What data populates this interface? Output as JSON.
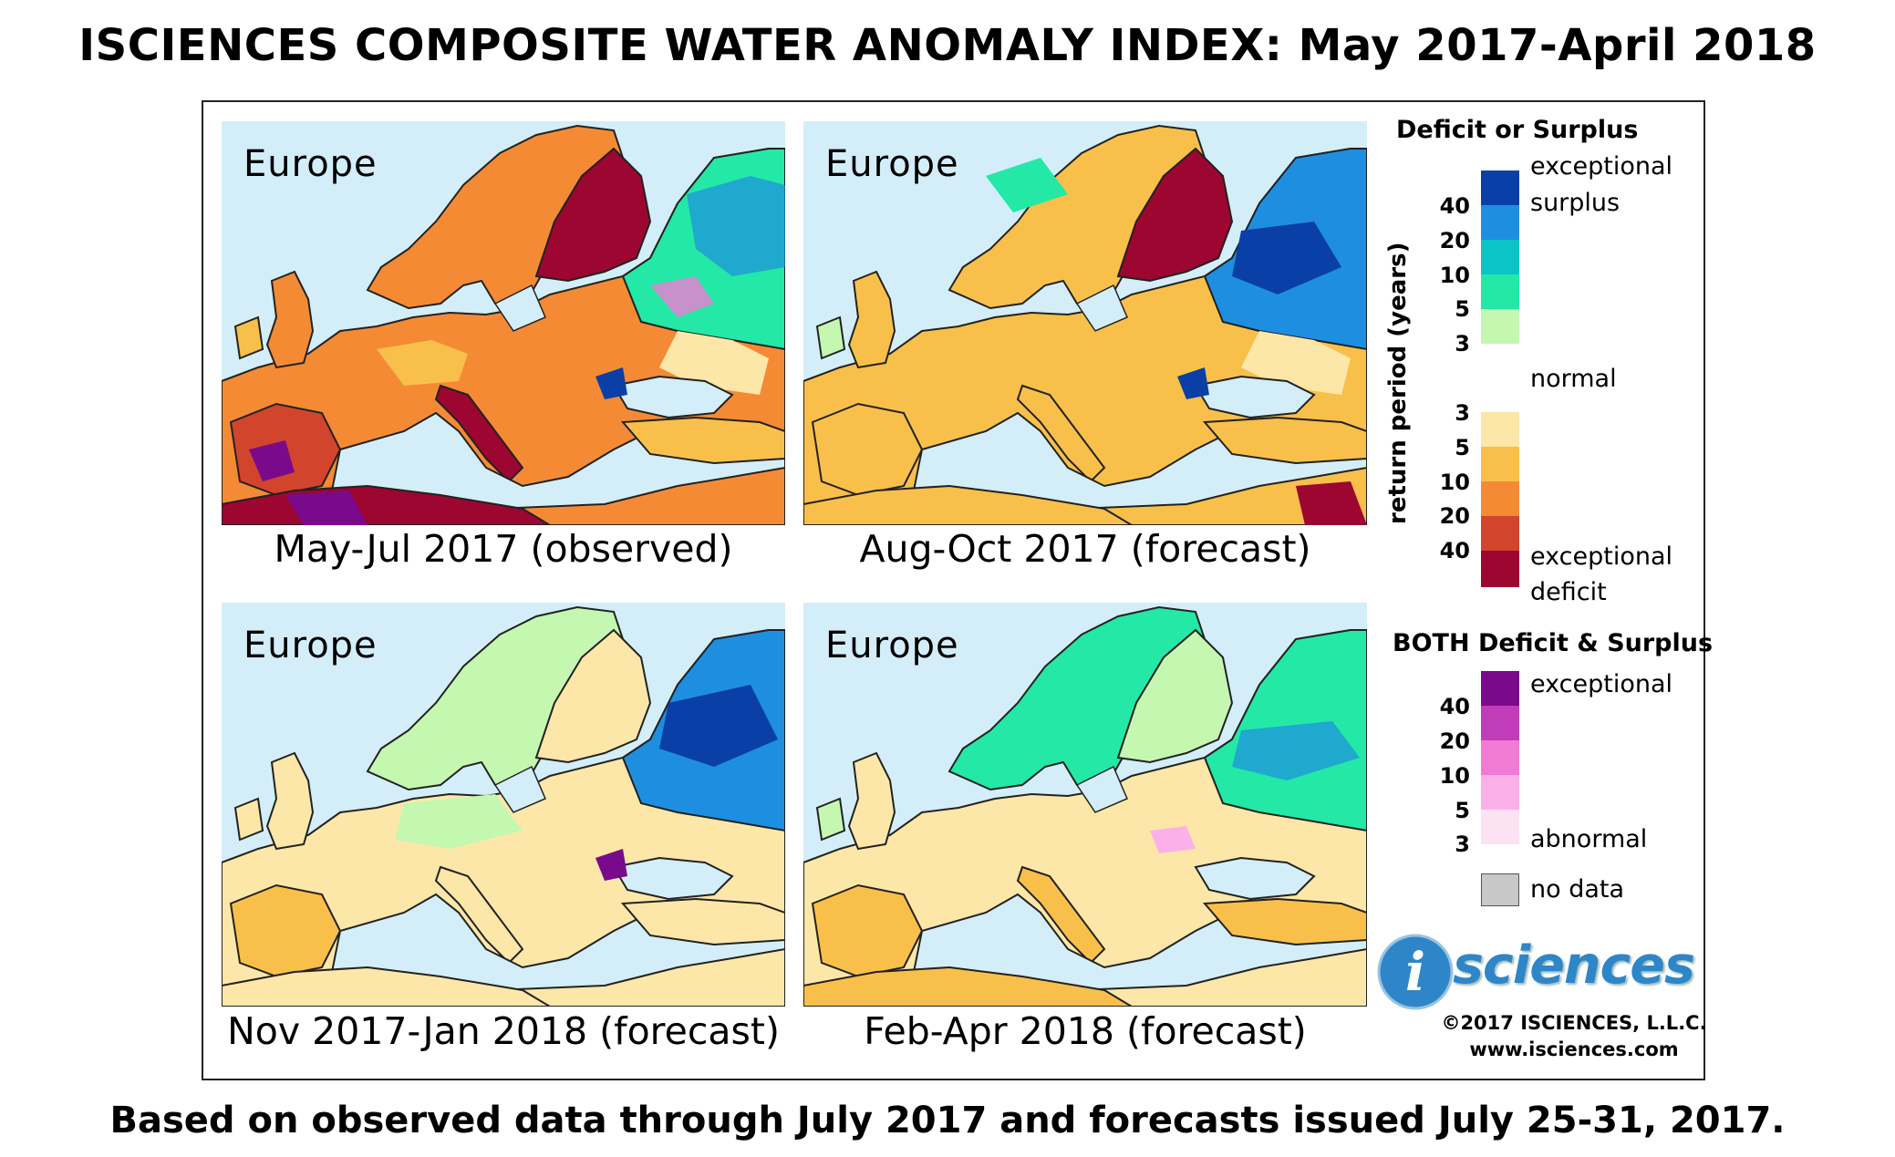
{
  "title": "ISCIENCES COMPOSITE WATER ANOMALY INDEX: May 2017-April 2018",
  "panels": [
    {
      "region": "Europe",
      "caption": "May-Jul 2017 (observed)"
    },
    {
      "region": "Europe",
      "caption": "Aug-Oct 2017 (forecast)"
    },
    {
      "region": "Europe",
      "caption": "Nov 2017-Jan 2018 (forecast)"
    },
    {
      "region": "Europe",
      "caption": "Feb-Apr 2018 (forecast)"
    }
  ],
  "legend": {
    "deficit_surplus_title": "Deficit or Surplus",
    "axis_label": "return period (years)",
    "surplus_ticks": [
      "40",
      "20",
      "10",
      "5",
      "3"
    ],
    "deficit_ticks": [
      "3",
      "5",
      "10",
      "20",
      "40"
    ],
    "labels": {
      "exceptional_surplus_1": "exceptional",
      "exceptional_surplus_2": "surplus",
      "normal": "normal",
      "exceptional_deficit_1": "exceptional",
      "exceptional_deficit_2": "deficit"
    },
    "both_title": "BOTH Deficit & Surplus",
    "both_ticks": [
      "40",
      "20",
      "10",
      "5",
      "3"
    ],
    "both_labels": {
      "exceptional": "exceptional",
      "abnormal": "abnormal"
    },
    "no_data": "no data",
    "colors": {
      "surplus": [
        "#0a3fa8",
        "#1e8fe0",
        "#0cc3c8",
        "#23e8a6",
        "#c4f7b0"
      ],
      "normal": "#ffffff",
      "deficit": [
        "#fde7a8",
        "#f8c04a",
        "#f58a35",
        "#d2442c",
        "#9c0631"
      ],
      "both": [
        "#7a0a8c",
        "#c03cb8",
        "#f07ad4",
        "#fcb0ea",
        "#fde2f3"
      ],
      "no_data": "#c8c8c8",
      "sea": "#d3eef8"
    }
  },
  "logo": {
    "letter": "i",
    "word": "sciences"
  },
  "copyright": "©2017 ISCIENCES, L.L.C.",
  "website": "www.isciences.com",
  "footer_note": "Based on observed data through July 2017 and forecasts issued July 25-31, 2017."
}
